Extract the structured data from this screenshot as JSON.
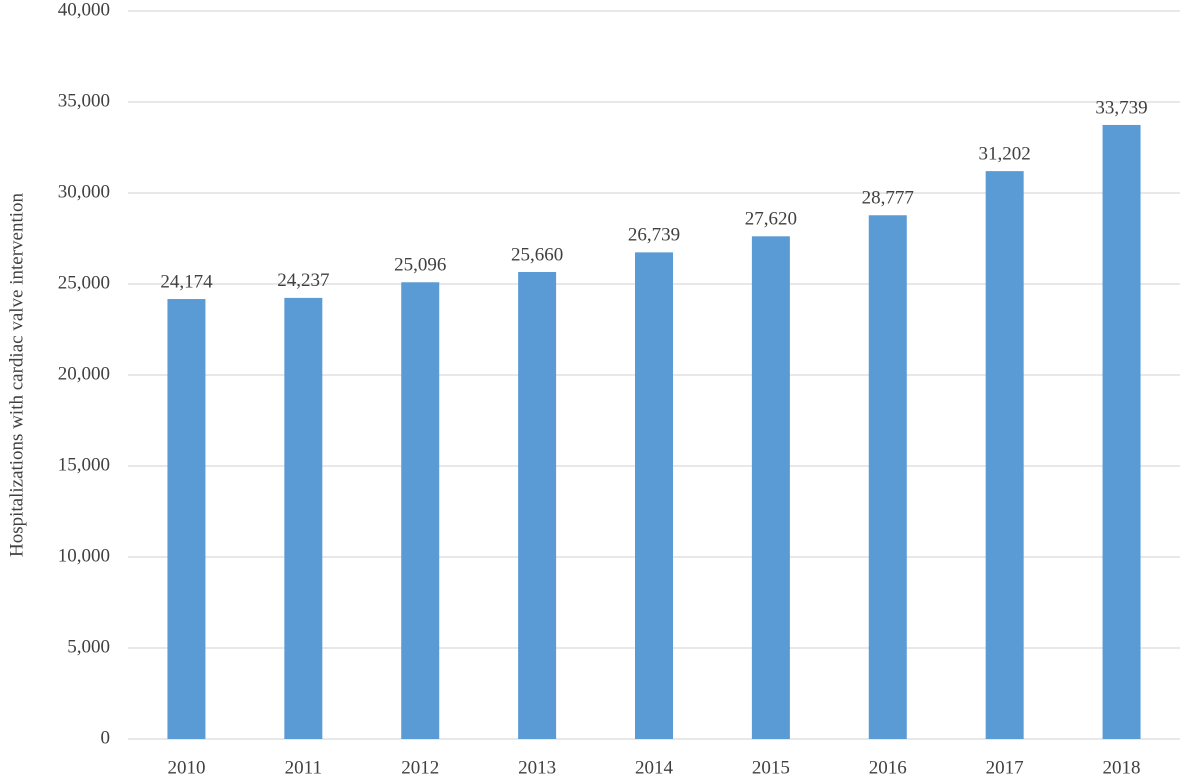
{
  "chart_data": {
    "type": "bar",
    "y_label": "Hospitalizations with cardiac valve intervention",
    "categories": [
      "2010",
      "2011",
      "2012",
      "2013",
      "2014",
      "2015",
      "2016",
      "2017",
      "2018"
    ],
    "values": [
      24174,
      24237,
      25096,
      25660,
      26739,
      27620,
      28777,
      31202,
      33739
    ],
    "value_labels": [
      "24,174",
      "24,237",
      "25,096",
      "25,660",
      "26,739",
      "27,620",
      "28,777",
      "31,202",
      "33,739"
    ],
    "color": "#5b9bd5",
    "ylim": [
      0,
      40000
    ],
    "yticks": [
      0,
      {
        "value": 5000,
        "label": "5,000"
      },
      {
        "value": 10000,
        "label": "10,000"
      },
      {
        "value": 15000,
        "label": "15,000"
      },
      {
        "value": 20000,
        "label": "20,000"
      },
      {
        "value": 25000,
        "label": "25,000"
      },
      {
        "value": 30000,
        "label": "30,000"
      },
      {
        "value": 35000,
        "label": "35,000"
      },
      {
        "value": 40000,
        "label": "40,000"
      }
    ],
    "grid": true
  }
}
